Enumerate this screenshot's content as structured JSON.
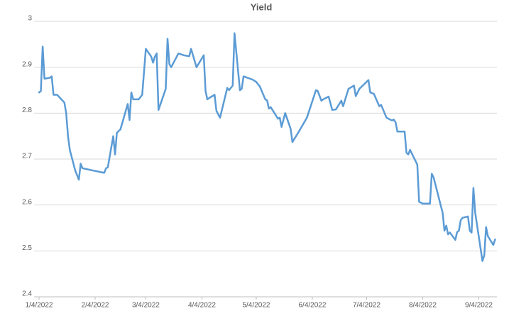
{
  "chart_data": {
    "type": "line",
    "title": "Yield",
    "x": [
      "1/4/2022",
      "1/5/2022",
      "1/6/2022",
      "1/7/2022",
      "1/10/2022",
      "1/11/2022",
      "1/12/2022",
      "1/14/2022",
      "1/18/2022",
      "1/19/2022",
      "1/20/2022",
      "1/21/2022",
      "1/24/2022",
      "1/26/2022",
      "1/27/2022",
      "1/28/2022",
      "2/9/2022",
      "2/10/2022",
      "2/11/2022",
      "2/14/2022",
      "2/15/2022",
      "2/16/2022",
      "2/18/2022",
      "2/22/2022",
      "2/23/2022",
      "2/24/2022",
      "2/25/2022",
      "2/28/2022",
      "3/2/2022",
      "3/4/2022",
      "3/7/2022",
      "3/8/2022",
      "3/9/2022",
      "3/10/2022",
      "3/11/2022",
      "3/15/2022",
      "3/16/2022",
      "3/17/2022",
      "3/18/2022",
      "3/22/2022",
      "3/25/2022",
      "3/28/2022",
      "3/29/2022",
      "4/1/2022",
      "4/5/2022",
      "4/6/2022",
      "4/7/2022",
      "4/8/2022",
      "4/11/2022",
      "4/12/2022",
      "4/14/2022",
      "4/18/2022",
      "4/19/2022",
      "4/21/2022",
      "4/22/2022",
      "4/25/2022",
      "4/26/2022",
      "4/27/2022",
      "5/2/2022",
      "5/4/2022",
      "5/6/2022",
      "5/9/2022",
      "5/10/2022",
      "5/11/2022",
      "5/12/2022",
      "5/16/2022",
      "5/17/2022",
      "5/18/2022",
      "5/20/2022",
      "5/23/2022",
      "5/24/2022",
      "5/26/2022",
      "5/27/2022",
      "6/1/2022",
      "6/6/2022",
      "6/7/2022",
      "6/9/2022",
      "6/10/2022",
      "6/13/2022",
      "6/15/2022",
      "6/17/2022",
      "6/20/2022",
      "6/21/2022",
      "6/24/2022",
      "6/27/2022",
      "6/28/2022",
      "6/30/2022",
      "7/5/2022",
      "7/6/2022",
      "7/8/2022",
      "7/11/2022",
      "7/12/2022",
      "7/15/2022",
      "7/18/2022",
      "7/19/2022",
      "7/20/2022",
      "7/21/2022",
      "7/25/2022",
      "7/26/2022",
      "7/27/2022",
      "7/28/2022",
      "8/1/2022",
      "8/2/2022",
      "8/4/2022",
      "8/8/2022",
      "8/9/2022",
      "8/10/2022",
      "8/15/2022",
      "8/16/2022",
      "8/17/2022",
      "8/18/2022",
      "8/19/2022",
      "8/22/2022",
      "8/23/2022",
      "8/24/2022",
      "8/25/2022",
      "8/26/2022",
      "8/29/2022",
      "8/30/2022",
      "8/31/2022",
      "9/1/2022",
      "9/2/2022",
      "9/6/2022",
      "9/7/2022",
      "9/8/2022",
      "9/9/2022",
      "9/12/2022",
      "9/13/2022"
    ],
    "series": [
      {
        "name": "Yield",
        "color": "#5b9bd5",
        "values": [
          2.845,
          2.848,
          2.945,
          2.875,
          2.877,
          2.88,
          2.84,
          2.84,
          2.823,
          2.8,
          2.75,
          2.72,
          2.675,
          2.655,
          2.69,
          2.68,
          2.67,
          2.68,
          2.682,
          2.75,
          2.71,
          2.757,
          2.765,
          2.82,
          2.785,
          2.845,
          2.83,
          2.83,
          2.84,
          2.94,
          2.923,
          2.91,
          2.923,
          2.93,
          2.807,
          2.853,
          2.962,
          2.907,
          2.9,
          2.93,
          2.926,
          2.924,
          2.94,
          2.9,
          2.926,
          2.848,
          2.83,
          2.833,
          2.84,
          2.805,
          2.79,
          2.855,
          2.85,
          2.86,
          2.974,
          2.85,
          2.853,
          2.88,
          2.873,
          2.868,
          2.858,
          2.83,
          2.828,
          2.81,
          2.813,
          2.788,
          2.79,
          2.77,
          2.8,
          2.766,
          2.737,
          2.75,
          2.756,
          2.79,
          2.85,
          2.848,
          2.827,
          2.83,
          2.836,
          2.807,
          2.808,
          2.827,
          2.815,
          2.853,
          2.86,
          2.837,
          2.853,
          2.872,
          2.845,
          2.842,
          2.815,
          2.818,
          2.79,
          2.784,
          2.786,
          2.78,
          2.76,
          2.76,
          2.714,
          2.71,
          2.72,
          2.688,
          2.607,
          2.603,
          2.603,
          2.668,
          2.66,
          2.583,
          2.544,
          2.555,
          2.536,
          2.54,
          2.524,
          2.541,
          2.544,
          2.567,
          2.572,
          2.575,
          2.544,
          2.54,
          2.637,
          2.583,
          2.478,
          2.49,
          2.552,
          2.532,
          2.513,
          2.525
        ]
      }
    ],
    "xlim": [
      "1/4/2022",
      "9/14/2022"
    ],
    "xticks": [
      "1/4/2022",
      "2/4/2022",
      "3/4/2022",
      "4/4/2022",
      "5/4/2022",
      "6/4/2022",
      "7/4/2022",
      "8/4/2022",
      "9/4/2022"
    ],
    "ylim": [
      2.4,
      3
    ],
    "yticks": [
      2.4,
      2.5,
      2.6,
      2.7,
      2.8,
      2.9,
      3
    ],
    "grid": true
  }
}
